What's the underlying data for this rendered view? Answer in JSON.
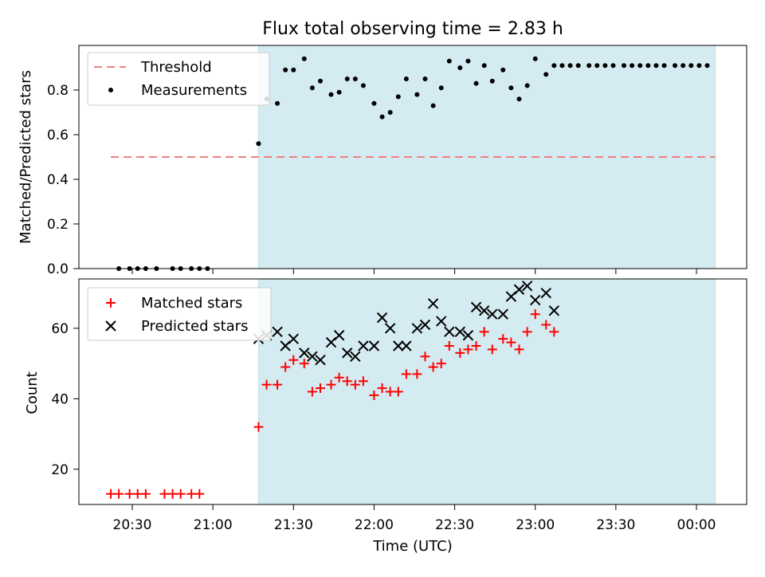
{
  "title": "Flux total observing time = 2.83 h",
  "colors": {
    "shade": "#d4ebf1",
    "threshold": "#f08080",
    "measurements": "#000000",
    "matched": "#ff0000",
    "predicted": "#000000"
  },
  "chart_data": [
    {
      "type": "scatter",
      "ylabel": "Matched/Predicted stars",
      "ylim": [
        0.0,
        1.0
      ],
      "yticks": [
        0.0,
        0.2,
        0.4,
        0.6,
        0.8
      ],
      "ytick_labels": [
        "0.0",
        "0.2",
        "0.4",
        "0.6",
        "0.8"
      ],
      "legend_position": "top-left",
      "shaded_region": {
        "start": "21:17",
        "end": "00:07"
      },
      "threshold": {
        "name": "Threshold",
        "value": 0.5,
        "x_start": "20:22",
        "x_end": "00:07"
      },
      "series": [
        {
          "name": "Measurements",
          "x": [
            "20:25",
            "20:29",
            "20:32",
            "20:35",
            "20:39",
            "20:45",
            "20:48",
            "20:52",
            "20:55",
            "20:58",
            "21:17",
            "21:20",
            "21:24",
            "21:27",
            "21:30",
            "21:34",
            "21:37",
            "21:40",
            "21:44",
            "21:47",
            "21:50",
            "21:53",
            "21:56",
            "22:00",
            "22:03",
            "22:06",
            "22:09",
            "22:12",
            "22:16",
            "22:19",
            "22:22",
            "22:25",
            "22:28",
            "22:32",
            "22:35",
            "22:38",
            "22:41",
            "22:44",
            "22:48",
            "22:51",
            "22:54",
            "22:57",
            "23:00",
            "23:04",
            "23:07",
            "23:10",
            "23:13",
            "23:16",
            "23:20",
            "23:23",
            "23:26",
            "23:29",
            "23:33",
            "23:36",
            "23:39",
            "23:42",
            "23:45",
            "23:48",
            "23:52",
            "23:55",
            "23:58",
            "00:01",
            "00:04"
          ],
          "y": [
            0.0,
            0.0,
            0.0,
            0.0,
            0.0,
            0.0,
            0.0,
            0.0,
            0.0,
            0.0,
            0.56,
            0.76,
            0.74,
            0.89,
            0.89,
            0.94,
            0.81,
            0.84,
            0.78,
            0.79,
            0.85,
            0.85,
            0.82,
            0.74,
            0.68,
            0.7,
            0.77,
            0.85,
            0.78,
            0.85,
            0.73,
            0.81,
            0.93,
            0.9,
            0.93,
            0.83,
            0.91,
            0.84,
            0.89,
            0.81,
            0.76,
            0.82,
            0.94,
            0.87,
            0.91,
            0.91,
            0.91,
            0.91,
            0.91,
            0.91,
            0.91,
            0.91,
            0.91,
            0.91,
            0.91,
            0.91,
            0.91,
            0.91,
            0.91,
            0.91,
            0.91,
            0.91,
            0.91
          ]
        }
      ]
    },
    {
      "type": "scatter",
      "ylabel": "Count",
      "xlabel": "Time (UTC)",
      "ylim": [
        10,
        74
      ],
      "yticks": [
        20,
        40,
        60
      ],
      "ytick_labels": [
        "20",
        "40",
        "60"
      ],
      "xticks": [
        "20:30",
        "21:00",
        "21:30",
        "22:00",
        "22:30",
        "23:00",
        "23:30",
        "00:00"
      ],
      "legend_position": "top-left",
      "shaded_region": {
        "start": "21:17",
        "end": "00:07"
      },
      "series": [
        {
          "name": "Matched stars",
          "x": [
            "20:22",
            "20:25",
            "20:29",
            "20:32",
            "20:35",
            "20:42",
            "20:45",
            "20:48",
            "20:52",
            "20:55",
            "21:17",
            "21:20",
            "21:24",
            "21:27",
            "21:30",
            "21:34",
            "21:37",
            "21:40",
            "21:44",
            "21:47",
            "21:50",
            "21:53",
            "21:56",
            "22:00",
            "22:03",
            "22:06",
            "22:09",
            "22:12",
            "22:16",
            "22:19",
            "22:22",
            "22:25",
            "22:28",
            "22:32",
            "22:35",
            "22:38",
            "22:41",
            "22:44",
            "22:48",
            "22:51",
            "22:54",
            "22:57",
            "23:00",
            "23:04",
            "23:07"
          ],
          "y": [
            13,
            13,
            13,
            13,
            13,
            13,
            13,
            13,
            13,
            13,
            32,
            44,
            44,
            49,
            51,
            50,
            42,
            43,
            44,
            46,
            45,
            44,
            45,
            41,
            43,
            42,
            42,
            47,
            47,
            52,
            49,
            50,
            55,
            53,
            54,
            55,
            59,
            54,
            57,
            56,
            54,
            59,
            64,
            61,
            59
          ]
        },
        {
          "name": "Predicted stars",
          "x": [
            "21:17",
            "21:20",
            "21:24",
            "21:27",
            "21:30",
            "21:34",
            "21:37",
            "21:40",
            "21:44",
            "21:47",
            "21:50",
            "21:53",
            "21:56",
            "22:00",
            "22:03",
            "22:06",
            "22:09",
            "22:12",
            "22:16",
            "22:19",
            "22:22",
            "22:25",
            "22:28",
            "22:32",
            "22:35",
            "22:38",
            "22:41",
            "22:44",
            "22:48",
            "22:51",
            "22:54",
            "22:57",
            "23:00",
            "23:04",
            "23:07"
          ],
          "y": [
            57,
            58,
            59,
            55,
            57,
            53,
            52,
            51,
            56,
            58,
            53,
            52,
            55,
            55,
            63,
            60,
            55,
            55,
            60,
            61,
            67,
            62,
            59,
            59,
            58,
            66,
            65,
            64,
            64,
            69,
            71,
            72,
            68,
            70,
            65
          ]
        }
      ]
    }
  ]
}
